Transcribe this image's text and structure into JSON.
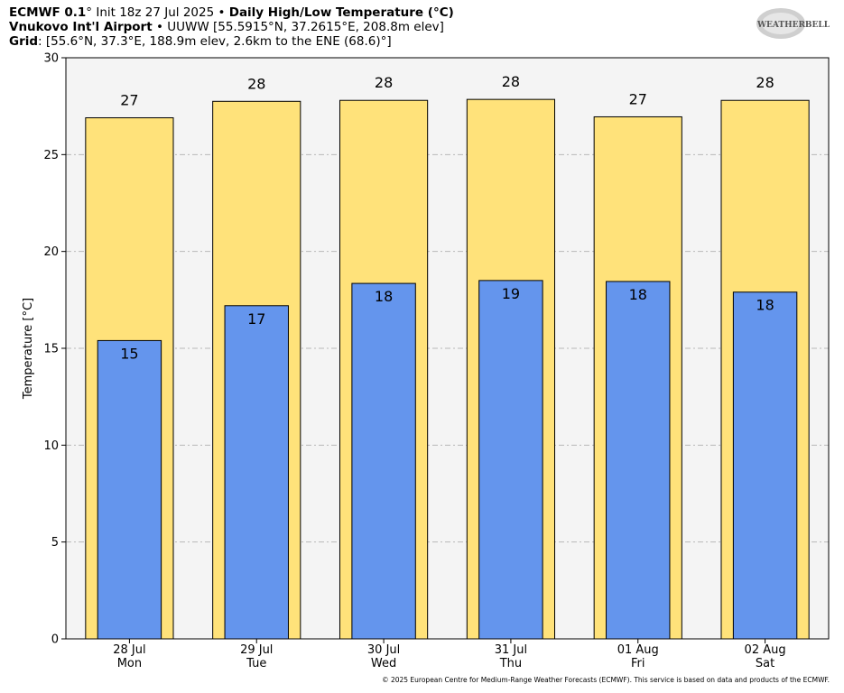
{
  "header": {
    "model": "ECMWF 0.1",
    "init": "° Init 18z 27 Jul 2025",
    "bullet": " • ",
    "title": "Daily High/Low Temperature (°C)",
    "station_name": "Vnukovo Int'l Airport",
    "station_info": " UUWW [55.5915°N, 37.2615°E, 208.8m elev]",
    "grid_label": "Grid",
    "grid_info": ": [55.6°N, 37.3°E, 188.9m elev, 2.6km to the ENE (68.6)°]"
  },
  "logo": {
    "text": "WEATHERBELL"
  },
  "footer": "© 2025 European Centre for Medium-Range Weather Forecasts (ECMWF). This service is based on data and products of the ECMWF.",
  "colors": {
    "high": "#ffe27a",
    "low": "#6495ed",
    "plot_bg": "#f4f4f4"
  },
  "chart_data": {
    "type": "bar",
    "ylabel": "Temperature [°C]",
    "ylim": [
      0,
      30
    ],
    "yticks": [
      0,
      5,
      10,
      15,
      20,
      25,
      30
    ],
    "grid": true,
    "categories": [
      "28 Jul",
      "29 Jul",
      "30 Jul",
      "31 Jul",
      "01 Aug",
      "02 Aug"
    ],
    "days": [
      "Mon",
      "Tue",
      "Wed",
      "Thu",
      "Fri",
      "Sat"
    ],
    "series": [
      {
        "values": [
          26.9,
          27.75,
          27.8,
          27.85,
          26.95,
          27.8
        ],
        "labels": [
          "27",
          "28",
          "28",
          "28",
          "27",
          "28"
        ]
      },
      {
        "values": [
          15.4,
          17.2,
          18.35,
          18.5,
          18.45,
          17.9
        ],
        "labels": [
          "15",
          "17",
          "18",
          "19",
          "18",
          "18"
        ]
      }
    ]
  }
}
